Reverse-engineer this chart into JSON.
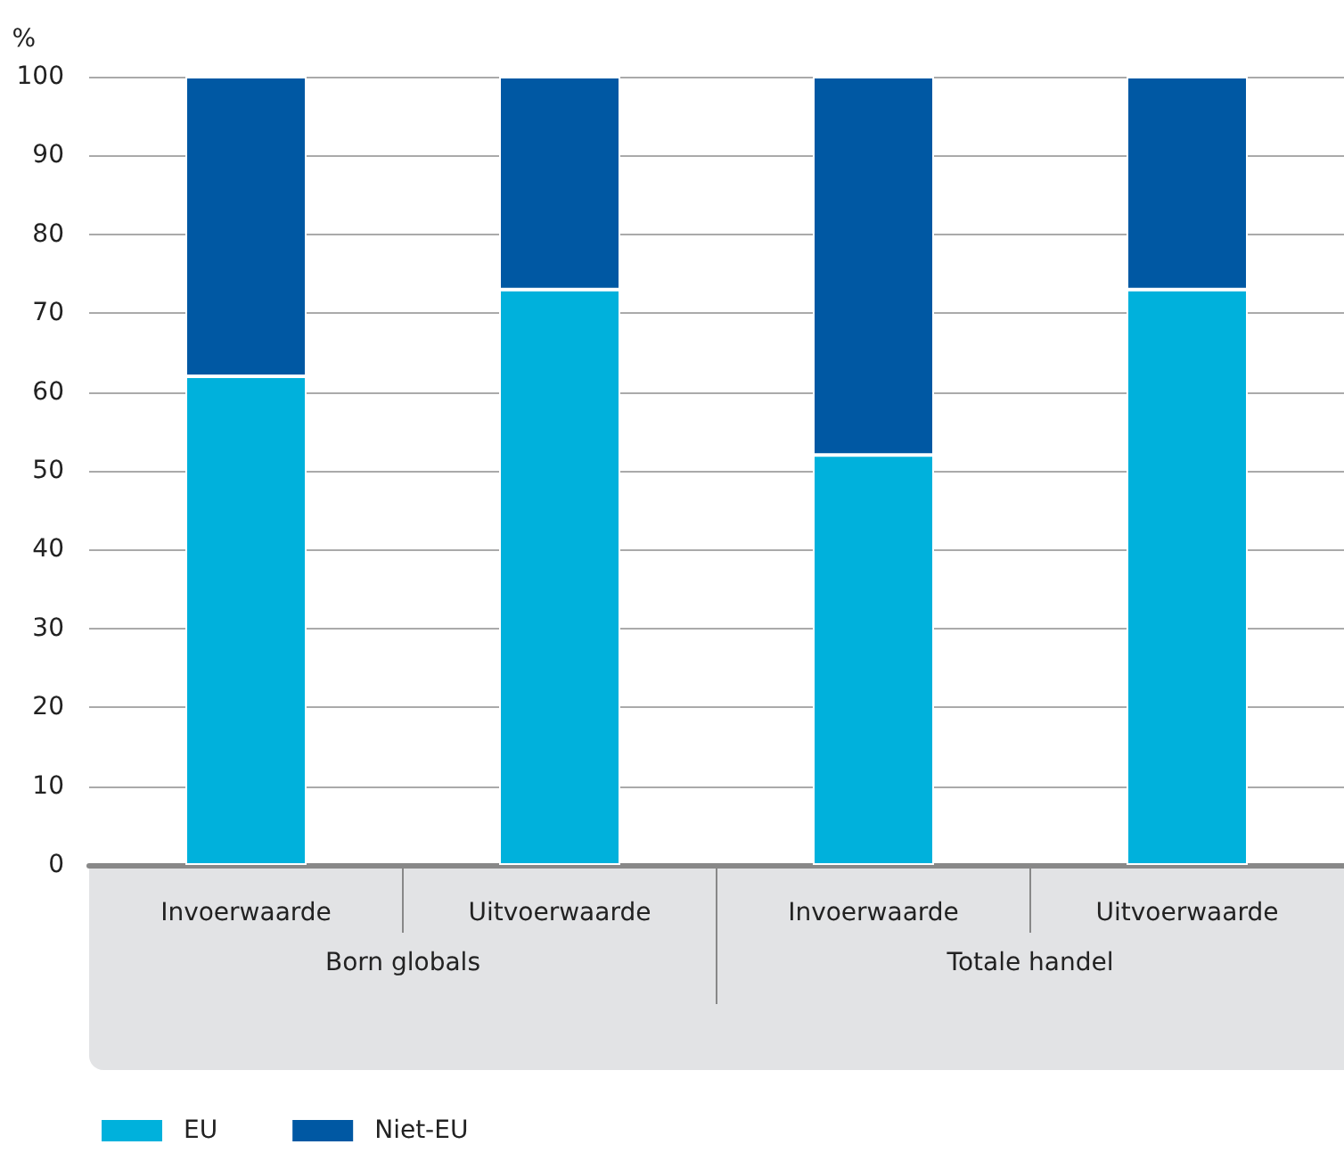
{
  "chart_data": {
    "type": "bar",
    "stacked": true,
    "ylabel": "%",
    "categories": [
      "Invoerwaarde",
      "Uitvoerwaarde",
      "Invoerwaarde",
      "Uitvoerwaarde"
    ],
    "series": [
      {
        "name": "EU",
        "color": "#00b1dc",
        "values": [
          62,
          73,
          52,
          73
        ]
      },
      {
        "name": "Niet-EU",
        "color": "#0058a3",
        "values": [
          38,
          27,
          48,
          27
        ]
      }
    ],
    "ylim": [
      0,
      100
    ],
    "yticks": [
      0,
      10,
      20,
      30,
      40,
      50,
      60,
      70,
      80,
      90,
      100
    ],
    "grid": "y",
    "legend": "bottom left",
    "annotations": [
      "Born globals",
      "Totale handel"
    ]
  }
}
